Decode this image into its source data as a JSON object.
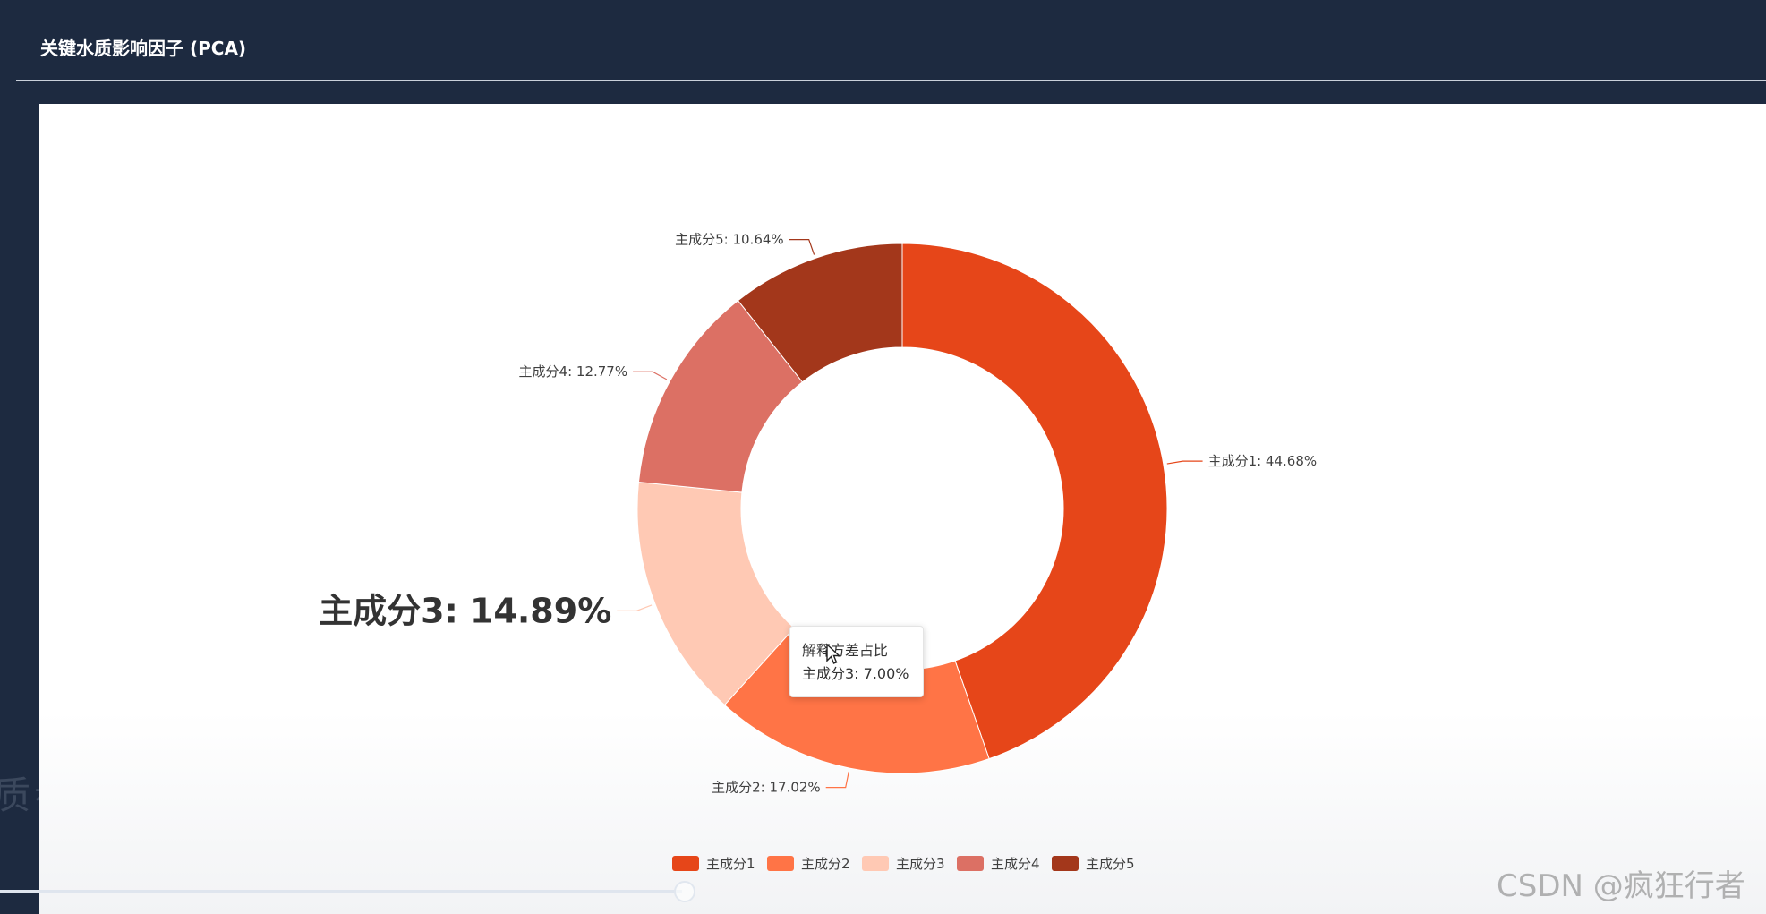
{
  "header": {
    "title": "关键水质影响因子 (PCA)"
  },
  "background_text": "质参",
  "chart_data": {
    "type": "pie",
    "title": "关键水质影响因子 (PCA)",
    "series_name": "解释方差占比",
    "categories": [
      "主成分1",
      "主成分2",
      "主成分3",
      "主成分4",
      "主成分5"
    ],
    "values": [
      44.68,
      17.02,
      14.89,
      12.77,
      10.64
    ],
    "unit": "%",
    "colors": [
      "#e64619",
      "#ff7446",
      "#ffc9b4",
      "#dc7064",
      "#a3371b"
    ],
    "emphasized_label": "主成分3: 14.89%",
    "legend_position": "bottom-center"
  },
  "labels": [
    "主成分1: 44.68%",
    "主成分2: 17.02%",
    "主成分3: 14.89%",
    "主成分4: 12.77%",
    "主成分5: 10.64%"
  ],
  "tooltip": {
    "title": "解释方差占比",
    "value": "主成分3: 7.00%"
  },
  "watermark": "CSDN @疯狂行者"
}
